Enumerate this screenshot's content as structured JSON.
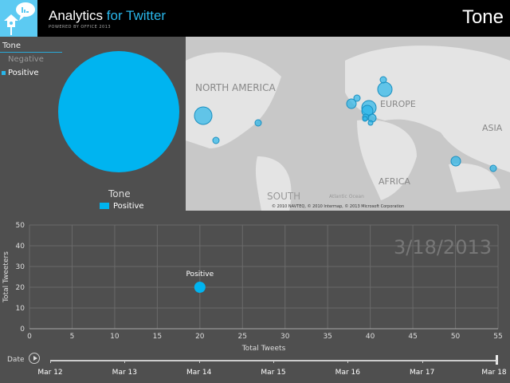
{
  "header": {
    "app_title_main": "Analytics",
    "app_title_accent": "for Twitter",
    "powered_by": "POWERED BY OFFICE 2013",
    "page_title": "Tone",
    "logo_icon": "birdhouse-chat-icon",
    "logo_bg": "#5ccaf2"
  },
  "slicer": {
    "title": "Tone",
    "items": [
      {
        "label": "Negative",
        "selected": false
      },
      {
        "label": "Positive",
        "selected": true
      }
    ]
  },
  "pie": {
    "title": "Tone",
    "legend": "Positive",
    "color": "#00b4f0",
    "slices": [
      {
        "label": "Positive",
        "value": 100
      }
    ]
  },
  "map": {
    "labels": [
      "NORTH AMERICA",
      "EUROPE",
      "ASIA",
      "AFRICA",
      "SOUTH",
      "Atlantic Ocean"
    ],
    "copyright": "© 2010 NAVTEQ, © 2010 Intermap, © 2013 Microsoft Corporation",
    "bubble_color": "#29b6ea"
  },
  "chart_data": {
    "type": "scatter",
    "xlabel": "Total Tweets",
    "ylabel": "Total Tweeters",
    "xlim": [
      0,
      55
    ],
    "ylim": [
      0,
      50
    ],
    "xticks": [
      0,
      5,
      10,
      15,
      20,
      25,
      30,
      35,
      40,
      45,
      50,
      55
    ],
    "yticks": [
      0,
      10,
      20,
      30,
      40,
      50
    ],
    "grid": true,
    "points": [
      {
        "label": "Positive",
        "x": 20,
        "y": 20
      }
    ],
    "play_axis_value": "3/18/2013",
    "color": "#00b4f0"
  },
  "timeline": {
    "label": "Date",
    "dates": [
      "Mar 12",
      "Mar 13",
      "Mar 14",
      "Mar 15",
      "Mar 16",
      "Mar 17",
      "Mar 18"
    ],
    "current": "Mar 18"
  }
}
